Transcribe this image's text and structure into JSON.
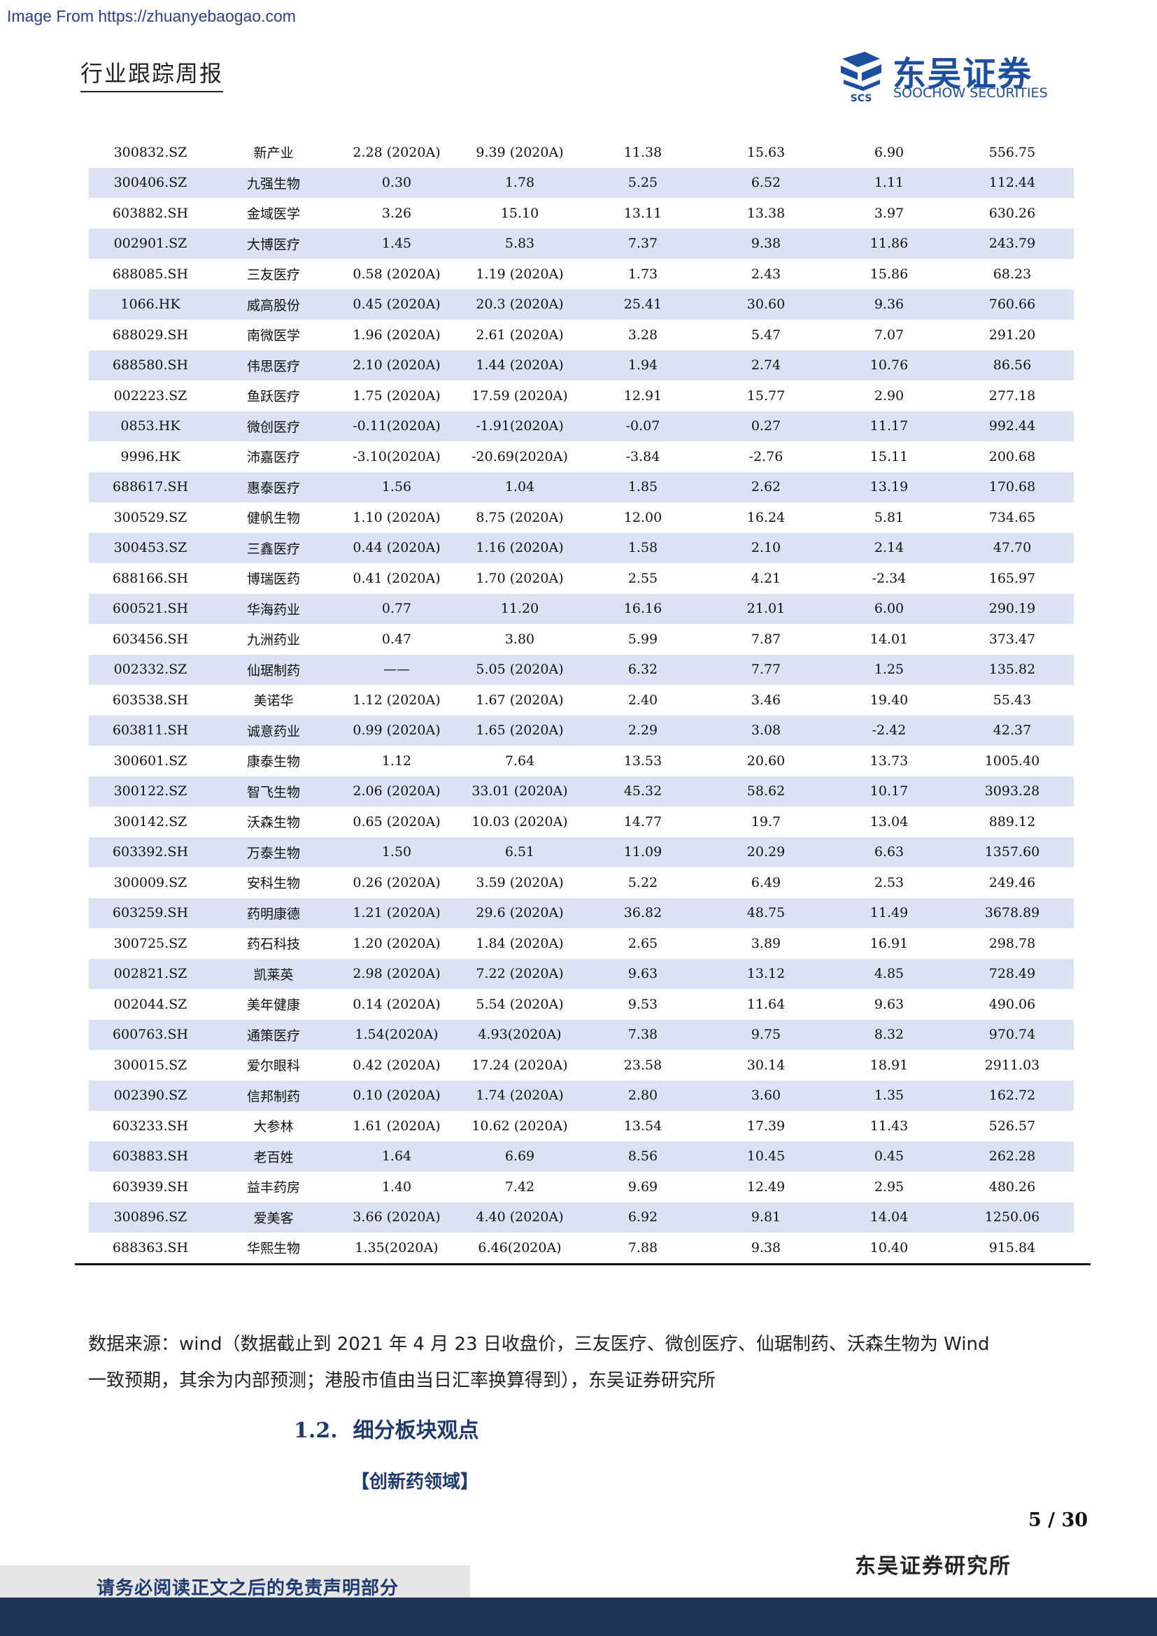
{
  "header": {
    "source_banner": "Image From https://zhuanyebaogao.com",
    "report_type": "行业跟踪周报",
    "logo_cn": "东吴证券",
    "logo_en": "SOOCHOW SECURITIES",
    "logo_mark_text": "SCS"
  },
  "table": {
    "rows": [
      [
        "300832.SZ",
        "新产业",
        "2.28 (2020A)",
        "9.39 (2020A)",
        "11.38",
        "15.63",
        "6.90",
        "556.75"
      ],
      [
        "300406.SZ",
        "九强生物",
        "0.30",
        "1.78",
        "5.25",
        "6.52",
        "1.11",
        "112.44"
      ],
      [
        "603882.SH",
        "金域医学",
        "3.26",
        "15.10",
        "13.11",
        "13.38",
        "3.97",
        "630.26"
      ],
      [
        "002901.SZ",
        "大博医疗",
        "1.45",
        "5.83",
        "7.37",
        "9.38",
        "11.86",
        "243.79"
      ],
      [
        "688085.SH",
        "三友医疗",
        "0.58 (2020A)",
        "1.19 (2020A)",
        "1.73",
        "2.43",
        "15.86",
        "68.23"
      ],
      [
        "1066.HK",
        "威高股份",
        "0.45 (2020A)",
        "20.3 (2020A)",
        "25.41",
        "30.60",
        "9.36",
        "760.66"
      ],
      [
        "688029.SH",
        "南微医学",
        "1.96 (2020A)",
        "2.61 (2020A)",
        "3.28",
        "5.47",
        "7.07",
        "291.20"
      ],
      [
        "688580.SH",
        "伟思医疗",
        "2.10 (2020A)",
        "1.44 (2020A)",
        "1.94",
        "2.74",
        "10.76",
        "86.56"
      ],
      [
        "002223.SZ",
        "鱼跃医疗",
        "1.75 (2020A)",
        "17.59 (2020A)",
        "12.91",
        "15.77",
        "2.90",
        "277.18"
      ],
      [
        "0853.HK",
        "微创医疗",
        "-0.11(2020A)",
        "-1.91(2020A)",
        "-0.07",
        "0.27",
        "11.17",
        "992.44"
      ],
      [
        "9996.HK",
        "沛嘉医疗",
        "-3.10(2020A)",
        "-20.69(2020A)",
        "-3.84",
        "-2.76",
        "15.11",
        "200.68"
      ],
      [
        "688617.SH",
        "惠泰医疗",
        "1.56",
        "1.04",
        "1.85",
        "2.62",
        "13.19",
        "170.68"
      ],
      [
        "300529.SZ",
        "健帆生物",
        "1.10 (2020A)",
        "8.75 (2020A)",
        "12.00",
        "16.24",
        "5.81",
        "734.65"
      ],
      [
        "300453.SZ",
        "三鑫医疗",
        "0.44 (2020A)",
        "1.16 (2020A)",
        "1.58",
        "2.10",
        "2.14",
        "47.70"
      ],
      [
        "688166.SH",
        "博瑞医药",
        "0.41 (2020A)",
        "1.70 (2020A)",
        "2.55",
        "4.21",
        "-2.34",
        "165.97"
      ],
      [
        "600521.SH",
        "华海药业",
        "0.77",
        "11.20",
        "16.16",
        "21.01",
        "6.00",
        "290.19"
      ],
      [
        "603456.SH",
        "九洲药业",
        "0.47",
        "3.80",
        "5.99",
        "7.87",
        "14.01",
        "373.47"
      ],
      [
        "002332.SZ",
        "仙琚制药",
        "——",
        "5.05 (2020A)",
        "6.32",
        "7.77",
        "1.25",
        "135.82"
      ],
      [
        "603538.SH",
        "美诺华",
        "1.12 (2020A)",
        "1.67 (2020A)",
        "2.40",
        "3.46",
        "19.40",
        "55.43"
      ],
      [
        "603811.SH",
        "诚意药业",
        "0.99 (2020A)",
        "1.65 (2020A)",
        "2.29",
        "3.08",
        "-2.42",
        "42.37"
      ],
      [
        "300601.SZ",
        "康泰生物",
        "1.12",
        "7.64",
        "13.53",
        "20.60",
        "13.73",
        "1005.40"
      ],
      [
        "300122.SZ",
        "智飞生物",
        "2.06 (2020A)",
        "33.01 (2020A)",
        "45.32",
        "58.62",
        "10.17",
        "3093.28"
      ],
      [
        "300142.SZ",
        "沃森生物",
        "0.65 (2020A)",
        "10.03 (2020A)",
        "14.77",
        "19.7",
        "13.04",
        "889.12"
      ],
      [
        "603392.SH",
        "万泰生物",
        "1.50",
        "6.51",
        "11.09",
        "20.29",
        "6.63",
        "1357.60"
      ],
      [
        "300009.SZ",
        "安科生物",
        "0.26 (2020A)",
        "3.59 (2020A)",
        "5.22",
        "6.49",
        "2.53",
        "249.46"
      ],
      [
        "603259.SH",
        "药明康德",
        "1.21 (2020A)",
        "29.6 (2020A)",
        "36.82",
        "48.75",
        "11.49",
        "3678.89"
      ],
      [
        "300725.SZ",
        "药石科技",
        "1.20 (2020A)",
        "1.84 (2020A)",
        "2.65",
        "3.89",
        "16.91",
        "298.78"
      ],
      [
        "002821.SZ",
        "凯莱英",
        "2.98 (2020A)",
        "7.22 (2020A)",
        "9.63",
        "13.12",
        "4.85",
        "728.49"
      ],
      [
        "002044.SZ",
        "美年健康",
        "0.14 (2020A)",
        "5.54 (2020A)",
        "9.53",
        "11.64",
        "9.63",
        "490.06"
      ],
      [
        "600763.SH",
        "通策医疗",
        "1.54(2020A)",
        "4.93(2020A)",
        "7.38",
        "9.75",
        "8.32",
        "970.74"
      ],
      [
        "300015.SZ",
        "爱尔眼科",
        "0.42 (2020A)",
        "17.24 (2020A)",
        "23.58",
        "30.14",
        "18.91",
        "2911.03"
      ],
      [
        "002390.SZ",
        "信邦制药",
        "0.10 (2020A)",
        "1.74 (2020A)",
        "2.80",
        "3.60",
        "1.35",
        "162.72"
      ],
      [
        "603233.SH",
        "大参林",
        "1.61 (2020A)",
        "10.62 (2020A)",
        "13.54",
        "17.39",
        "11.43",
        "526.57"
      ],
      [
        "603883.SH",
        "老百姓",
        "1.64",
        "6.69",
        "8.56",
        "10.45",
        "0.45",
        "262.28"
      ],
      [
        "603939.SH",
        "益丰药房",
        "1.40",
        "7.42",
        "9.69",
        "12.49",
        "2.95",
        "480.26"
      ],
      [
        "300896.SZ",
        "爱美客",
        "3.66 (2020A)",
        "4.40 (2020A)",
        "6.92",
        "9.81",
        "14.04",
        "1250.06"
      ],
      [
        "688363.SH",
        "华熙生物",
        "1.35(2020A)",
        "6.46(2020A)",
        "7.88",
        "9.38",
        "10.40",
        "915.84"
      ]
    ]
  },
  "note": {
    "line1": "数据来源：wind（数据截止到 2021 年 4 月 23 日收盘价，三友医疗、微创医疗、仙琚制药、沃森生物为 Wind",
    "line2": "一致预期，其余为内部预测；港股市值由当日汇率换算得到），东吴证券研究所"
  },
  "section": {
    "number": "1.2.",
    "title": "细分板块观点"
  },
  "subheading": "【创新药领域】",
  "footer": {
    "page_number": "5 / 30",
    "firm_name": "东吴证券研究所",
    "disclaimer": "请务必阅读正文之后的免责声明部分"
  }
}
